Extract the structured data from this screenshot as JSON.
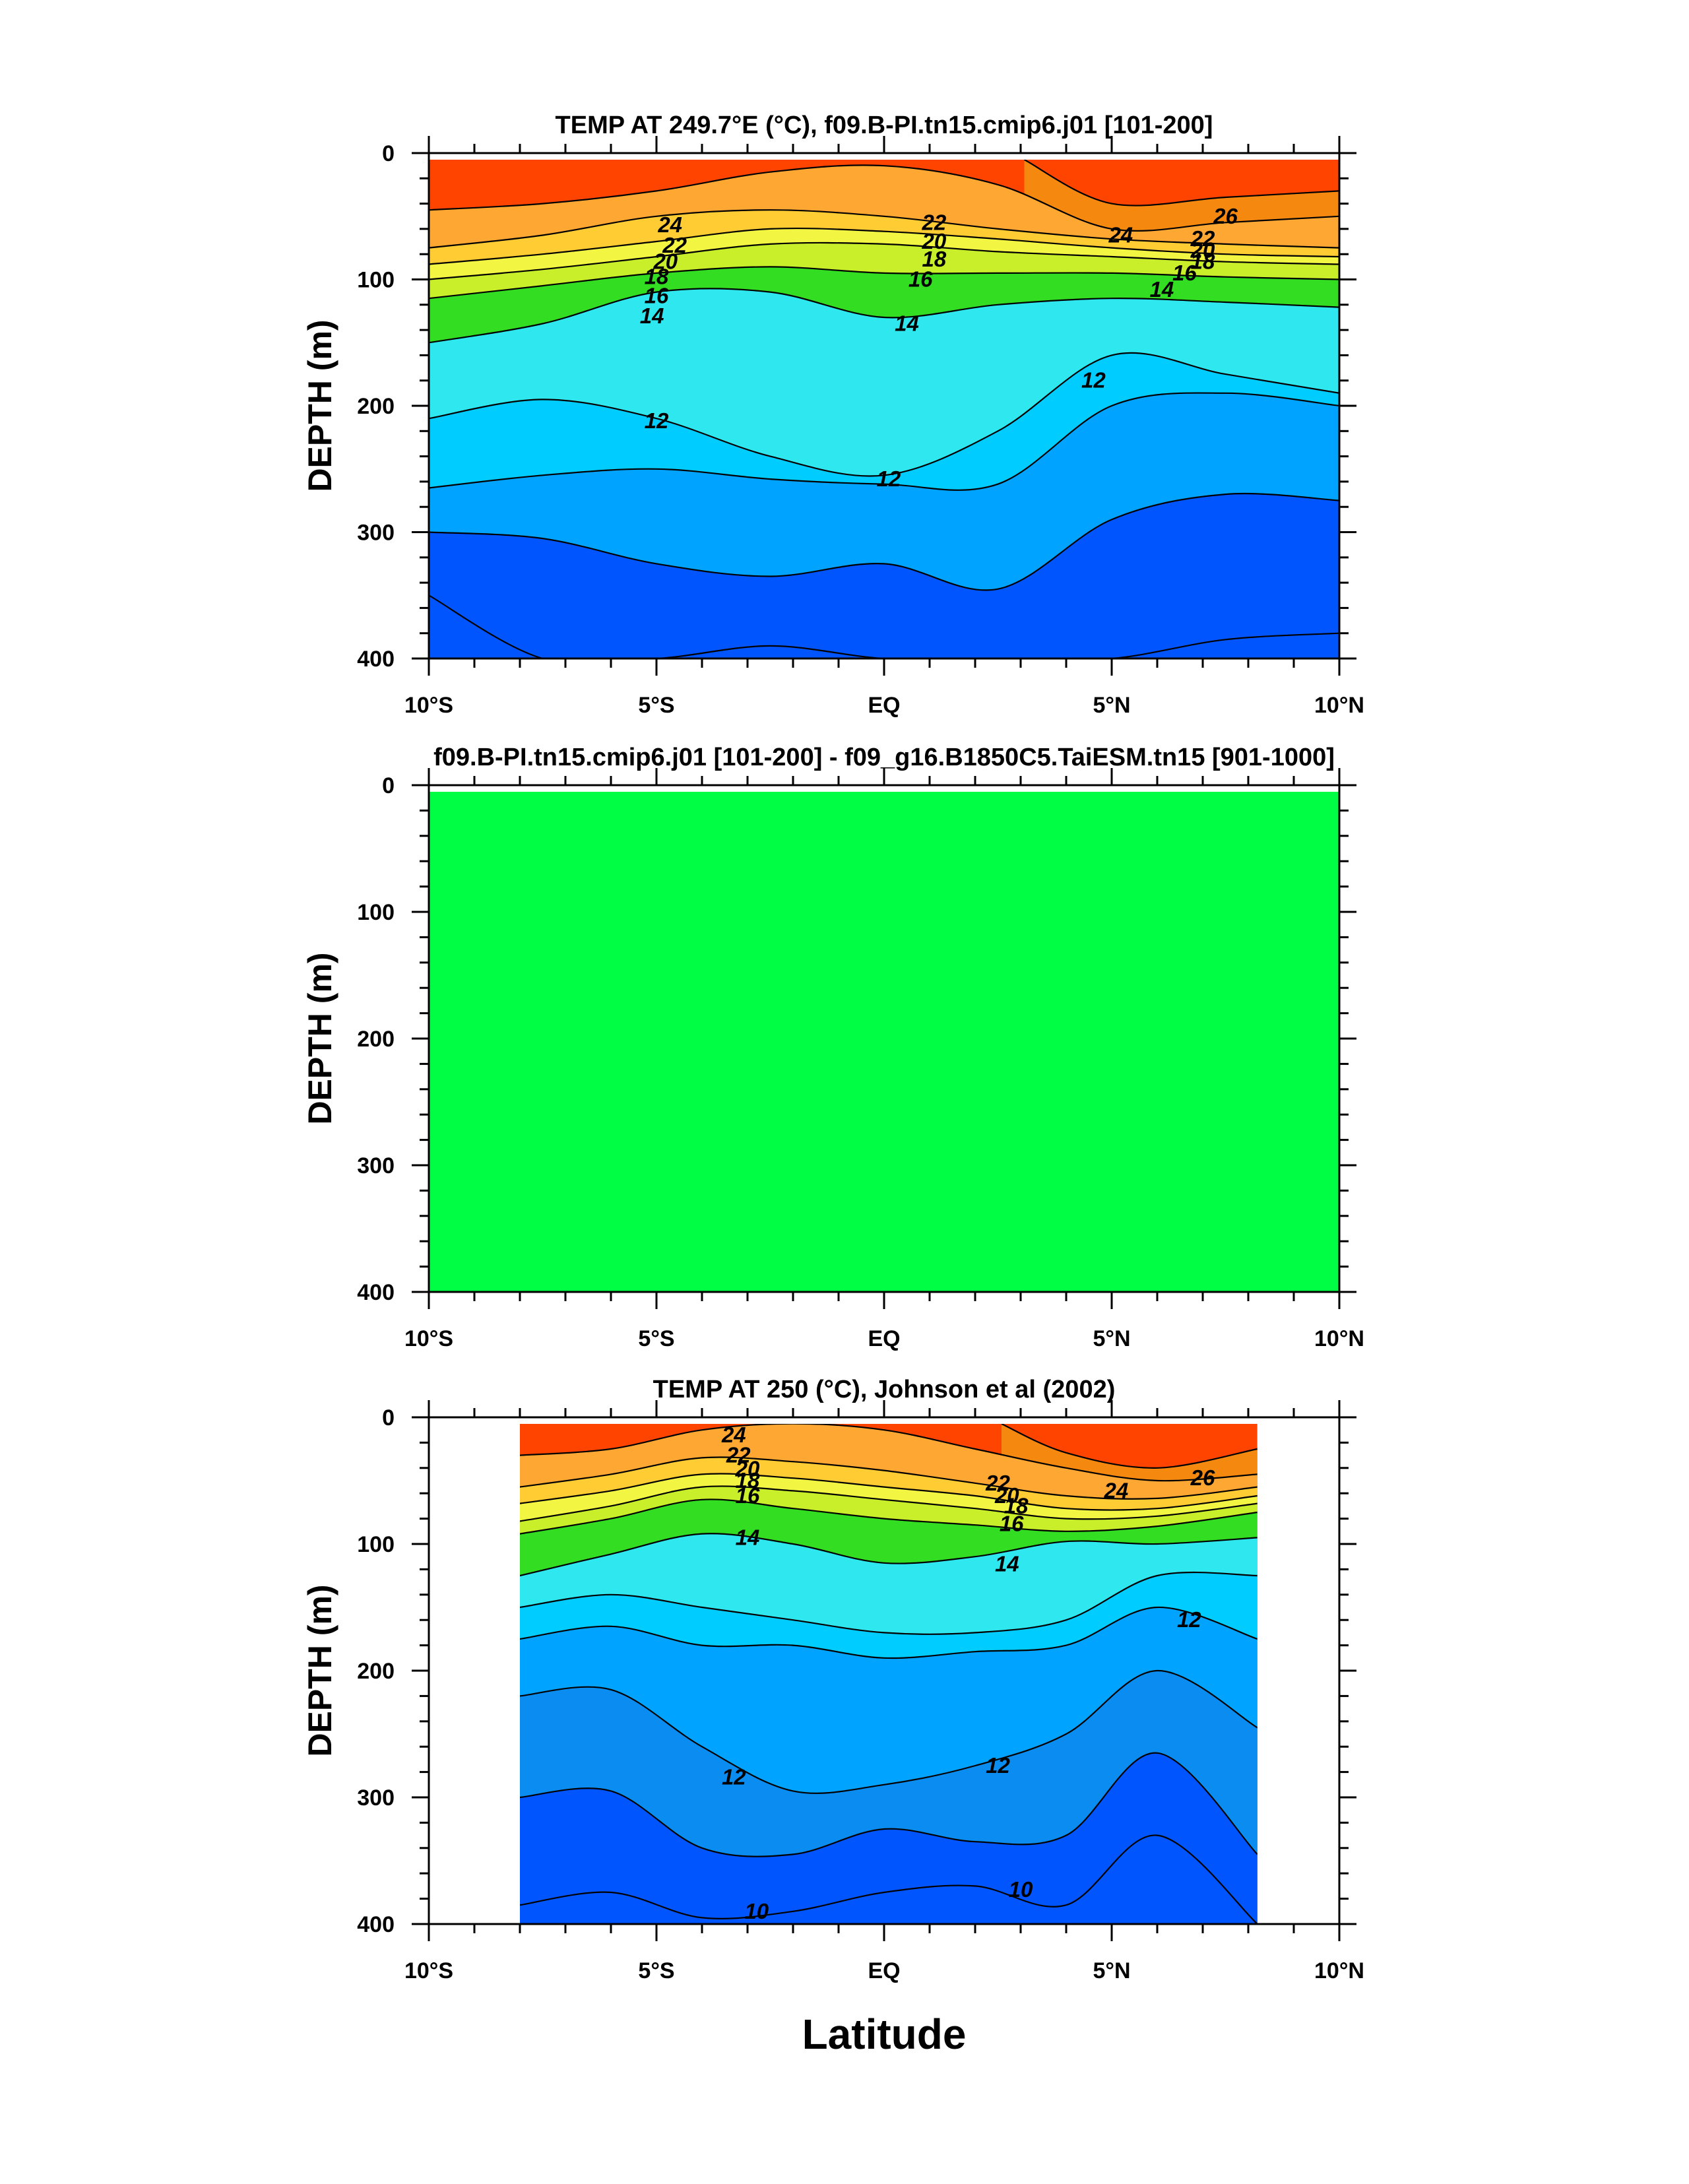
{
  "figure": {
    "xlabel": "Latitude"
  },
  "colors": {
    "t26": "#ff4400",
    "t24": "#f5890f",
    "t22": "#ffa733",
    "t20": "#ffcc33",
    "t18": "#f2f542",
    "t16": "#c9ee2a",
    "t14": "#33dd22",
    "t12": "#2fe8ef",
    "t11": "#00ccff",
    "t10": "#00a3ff",
    "t9": "#0a8cf0",
    "t8": "#0055ff",
    "diff": "#00ff44",
    "contour": "#000000"
  },
  "chart_data": [
    {
      "type": "heatmap",
      "title": "TEMP AT 249.7°E (°C), f09.B-PI.tn15.cmip6.j01 [101-200]",
      "ylabel": "DEPTH (m)",
      "xlim": [
        -10,
        10
      ],
      "ylim": [
        400,
        0
      ],
      "x_ticks": [
        "10°S",
        "5°S",
        "EQ",
        "5°N",
        "10°N"
      ],
      "y_ticks": [
        "0",
        "100",
        "200",
        "300",
        "400"
      ],
      "x": [
        -10,
        -7.5,
        -5,
        -2.5,
        0,
        2.5,
        5,
        7.5,
        10
      ],
      "isotherm_depths": {
        "26": [
          null,
          null,
          null,
          null,
          null,
          null,
          40,
          35,
          30
        ],
        "24": [
          45,
          40,
          30,
          15,
          10,
          25,
          60,
          55,
          50
        ],
        "22": [
          75,
          65,
          50,
          45,
          50,
          60,
          68,
          72,
          75
        ],
        "20": [
          88,
          80,
          70,
          60,
          62,
          68,
          75,
          80,
          82
        ],
        "18": [
          100,
          92,
          82,
          72,
          72,
          78,
          82,
          86,
          88
        ],
        "16": [
          115,
          105,
          95,
          90,
          95,
          95,
          95,
          98,
          100
        ],
        "14": [
          150,
          135,
          110,
          110,
          130,
          120,
          115,
          118,
          122
        ],
        "12": [
          210,
          195,
          210,
          240,
          255,
          220,
          160,
          175,
          190
        ],
        "11": [
          265,
          255,
          250,
          258,
          262,
          262,
          200,
          190,
          200
        ],
        "10": [
          300,
          305,
          325,
          335,
          325,
          345,
          290,
          270,
          275
        ],
        "8": [
          350,
          400,
          400,
          390,
          400,
          400,
          400,
          385,
          380
        ]
      },
      "contour_labels": [
        {
          "text": "24",
          "x": -4.7,
          "y": 57
        },
        {
          "text": "22",
          "x": -4.6,
          "y": 73
        },
        {
          "text": "20",
          "x": -4.8,
          "y": 86
        },
        {
          "text": "18",
          "x": -5.0,
          "y": 98
        },
        {
          "text": "16",
          "x": -5.0,
          "y": 113
        },
        {
          "text": "14",
          "x": -5.1,
          "y": 129
        },
        {
          "text": "12",
          "x": -5.0,
          "y": 212
        },
        {
          "text": "22",
          "x": 1.1,
          "y": 55
        },
        {
          "text": "20",
          "x": 1.1,
          "y": 70
        },
        {
          "text": "18",
          "x": 1.1,
          "y": 84
        },
        {
          "text": "16",
          "x": 0.8,
          "y": 100
        },
        {
          "text": "14",
          "x": 0.5,
          "y": 135
        },
        {
          "text": "12",
          "x": 0.1,
          "y": 258
        },
        {
          "text": "12",
          "x": 4.6,
          "y": 180
        },
        {
          "text": "24",
          "x": 5.2,
          "y": 65
        },
        {
          "text": "26",
          "x": 7.5,
          "y": 50
        },
        {
          "text": "22",
          "x": 7.0,
          "y": 68
        },
        {
          "text": "20",
          "x": 7.0,
          "y": 77
        },
        {
          "text": "18",
          "x": 7.0,
          "y": 86
        },
        {
          "text": "16",
          "x": 6.6,
          "y": 95
        },
        {
          "text": "14",
          "x": 6.1,
          "y": 108
        }
      ]
    },
    {
      "type": "heatmap",
      "title": "f09.B-PI.tn15.cmip6.j01 [101-200] - f09_g16.B1850C5.TaiESM.tn15 [901-1000]",
      "ylabel": "DEPTH (m)",
      "xlim": [
        -10,
        10
      ],
      "ylim": [
        400,
        0
      ],
      "x_ticks": [
        "10°S",
        "5°S",
        "EQ",
        "5°N",
        "10°N"
      ],
      "y_ticks": [
        "0",
        "100",
        "200",
        "300",
        "400"
      ],
      "values": "uniform",
      "fill": "#00ff44"
    },
    {
      "type": "heatmap",
      "title": "TEMP AT 250 (°C), Johnson et al (2002)",
      "ylabel": "DEPTH (m)",
      "xlim": [
        -10,
        10
      ],
      "ylim": [
        400,
        0
      ],
      "data_xlim": [
        -8,
        8.2
      ],
      "x_ticks": [
        "10°S",
        "5°S",
        "EQ",
        "5°N",
        "10°N"
      ],
      "y_ticks": [
        "0",
        "100",
        "200",
        "300",
        "400"
      ],
      "x": [
        -8,
        -6,
        -4,
        -2,
        0,
        2,
        4,
        6,
        8.2
      ],
      "isotherm_depths": {
        "26": [
          null,
          null,
          null,
          null,
          null,
          null,
          28,
          40,
          25
        ],
        "24": [
          30,
          25,
          10,
          5,
          10,
          25,
          40,
          50,
          45
        ],
        "22": [
          55,
          45,
          32,
          35,
          42,
          52,
          62,
          64,
          55
        ],
        "20": [
          68,
          58,
          45,
          48,
          55,
          62,
          72,
          72,
          62
        ],
        "18": [
          82,
          70,
          55,
          58,
          65,
          72,
          80,
          78,
          68
        ],
        "16": [
          92,
          80,
          65,
          72,
          80,
          85,
          90,
          86,
          75
        ],
        "14": [
          125,
          108,
          92,
          100,
          115,
          110,
          98,
          100,
          95
        ],
        "12": [
          150,
          140,
          150,
          160,
          170,
          170,
          160,
          125,
          125
        ],
        "11": [
          175,
          165,
          180,
          180,
          190,
          185,
          180,
          150,
          175
        ],
        "10": [
          220,
          215,
          260,
          295,
          290,
          275,
          250,
          200,
          245
        ],
        "9": [
          300,
          295,
          340,
          345,
          325,
          335,
          330,
          265,
          345
        ],
        "8": [
          385,
          375,
          395,
          390,
          375,
          370,
          385,
          330,
          400
        ]
      },
      "contour_labels": [
        {
          "text": "24",
          "x": -3.3,
          "y": 14
        },
        {
          "text": "22",
          "x": -3.2,
          "y": 30
        },
        {
          "text": "20",
          "x": -3.0,
          "y": 41
        },
        {
          "text": "18",
          "x": -3.0,
          "y": 50
        },
        {
          "text": "16",
          "x": -3.0,
          "y": 62
        },
        {
          "text": "14",
          "x": -3.0,
          "y": 95
        },
        {
          "text": "12",
          "x": -3.3,
          "y": 284
        },
        {
          "text": "10",
          "x": -2.8,
          "y": 390
        },
        {
          "text": "22",
          "x": 2.5,
          "y": 52
        },
        {
          "text": "20",
          "x": 2.7,
          "y": 62
        },
        {
          "text": "18",
          "x": 2.9,
          "y": 70
        },
        {
          "text": "16",
          "x": 2.8,
          "y": 84
        },
        {
          "text": "14",
          "x": 2.7,
          "y": 116
        },
        {
          "text": "12",
          "x": 2.5,
          "y": 275
        },
        {
          "text": "10",
          "x": 3.0,
          "y": 373
        },
        {
          "text": "24",
          "x": 5.1,
          "y": 58
        },
        {
          "text": "26",
          "x": 7.0,
          "y": 48
        },
        {
          "text": "12",
          "x": 6.7,
          "y": 160
        }
      ]
    }
  ]
}
